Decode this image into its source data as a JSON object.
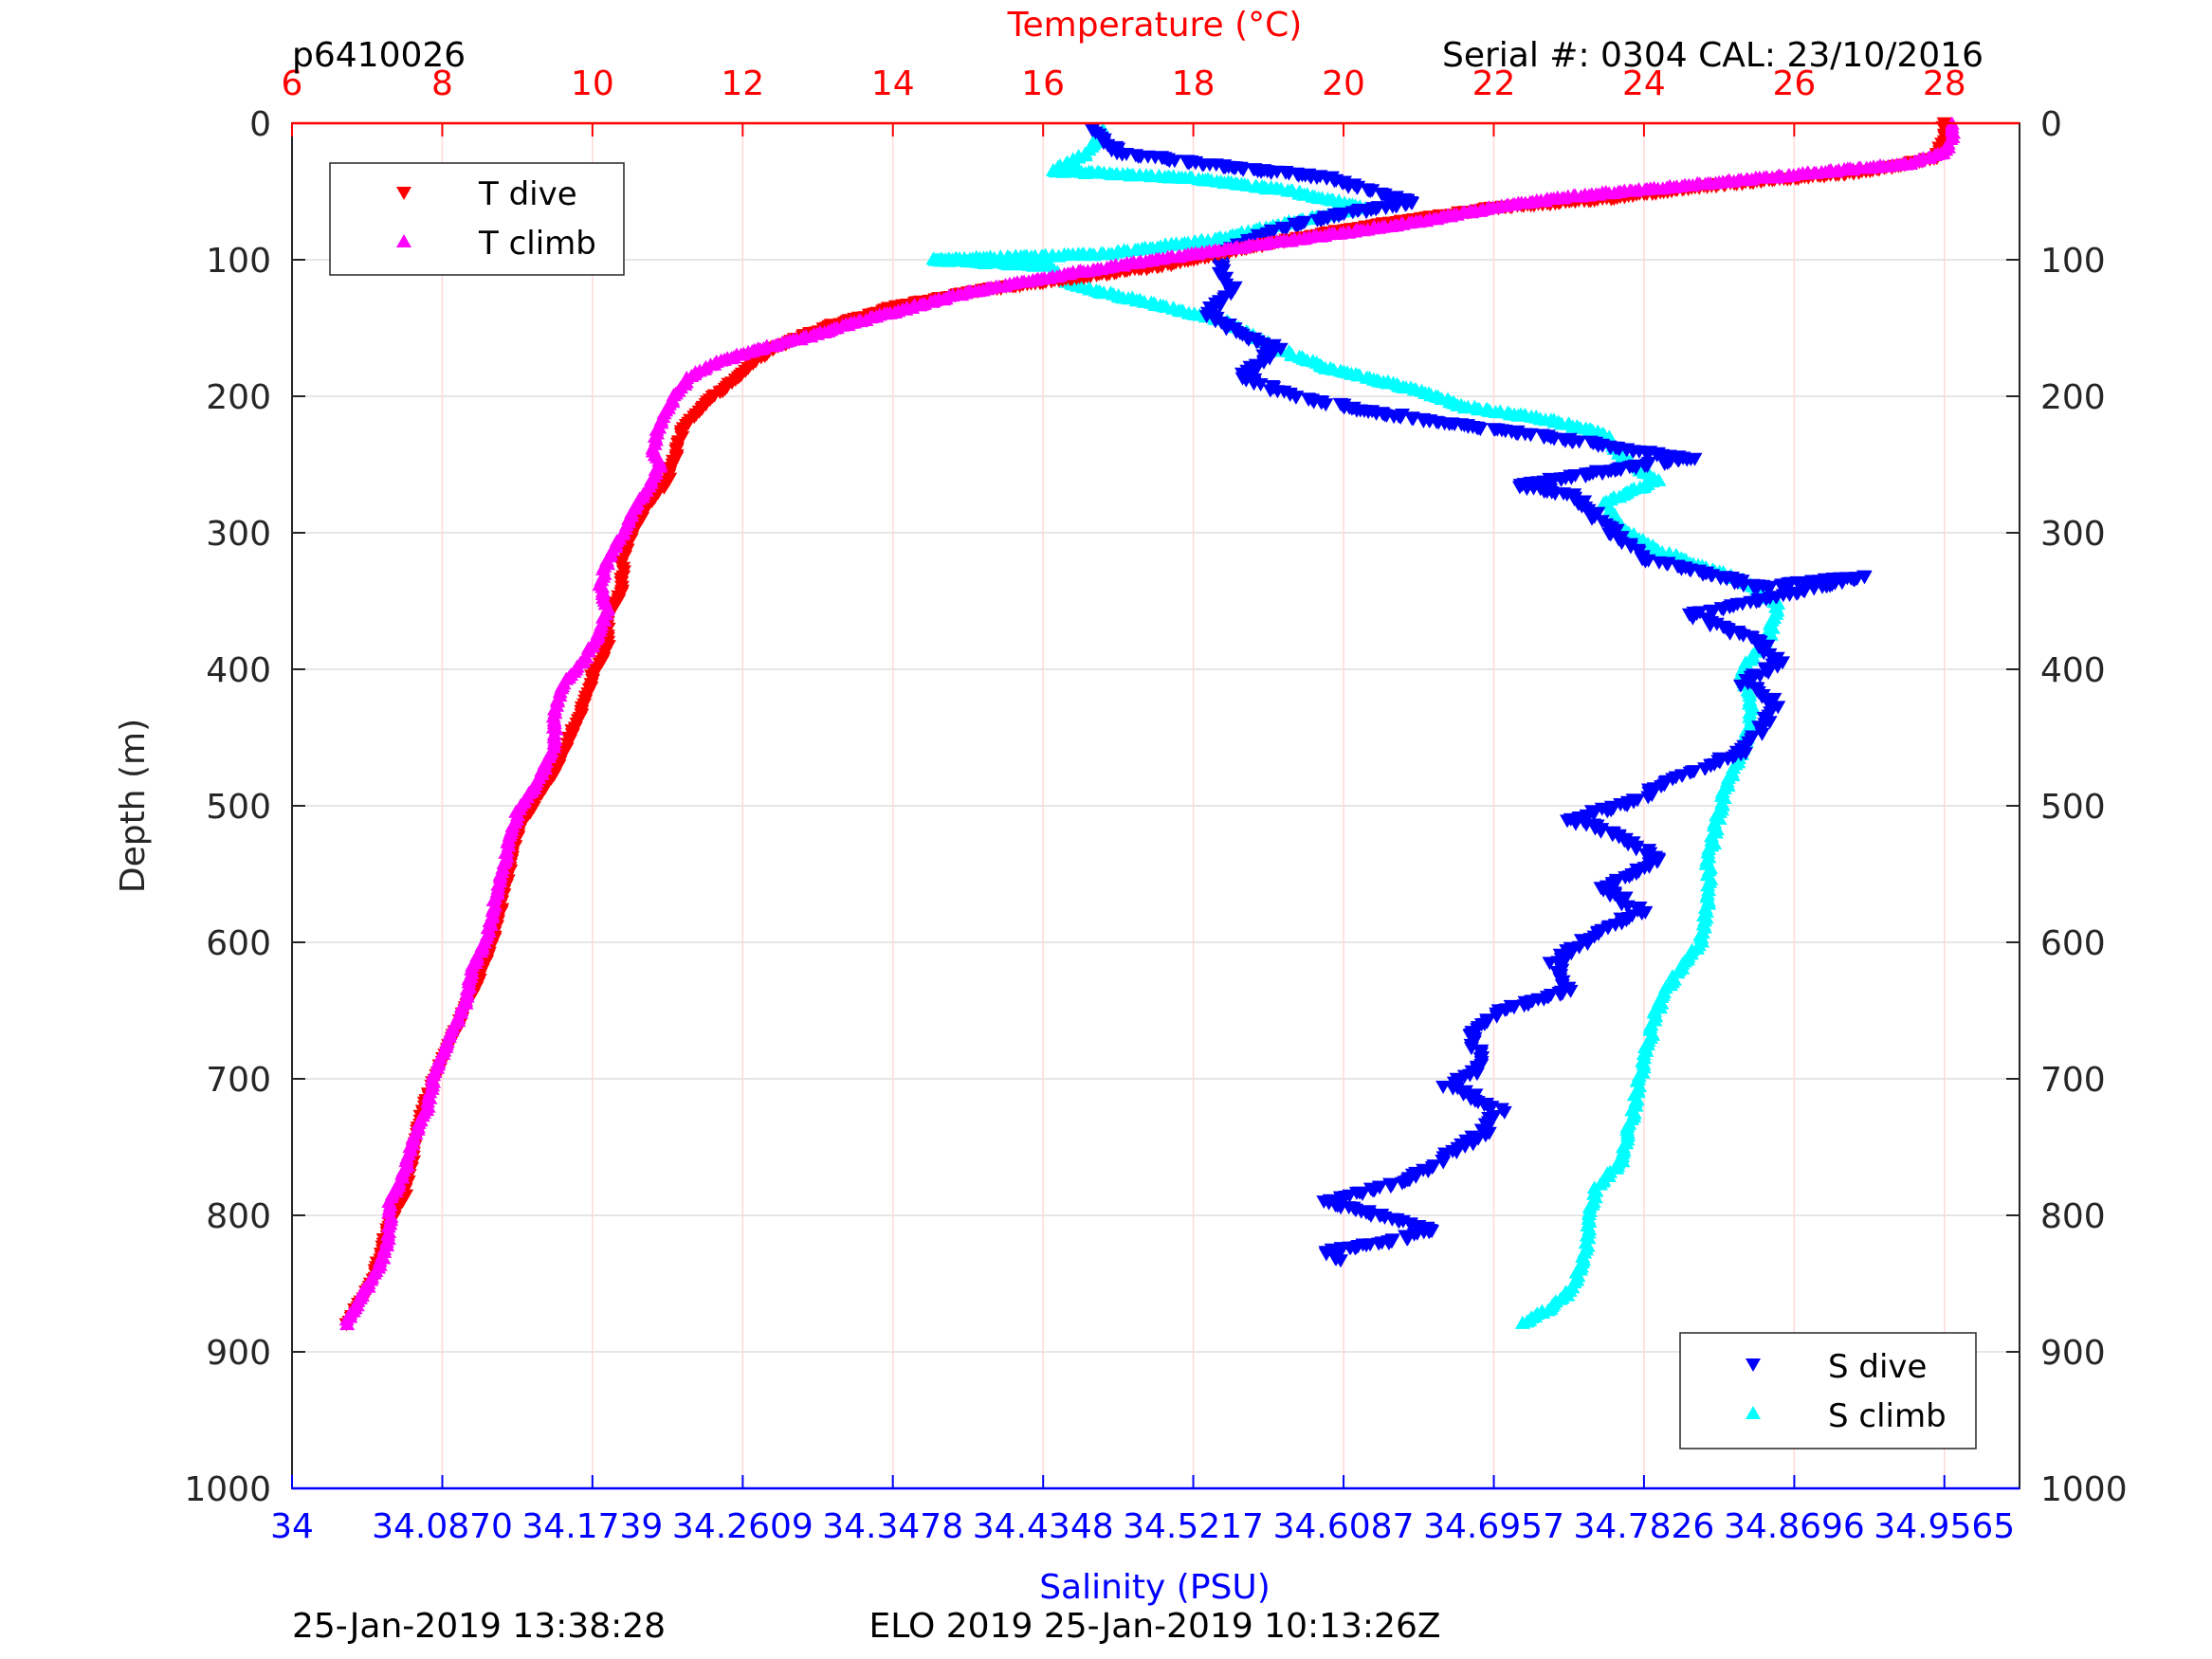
{
  "header": {
    "plot_id": "p6410026",
    "serial": "Serial #: 0304  CAL: 23/10/2016"
  },
  "footer": {
    "left": "25-Jan-2019 13:38:28",
    "center": "ELO 2019 25-Jan-2019 10:13:26Z"
  },
  "chart_data": {
    "type": "scatter",
    "y_axis": {
      "label": "Depth (m)",
      "range": [
        0,
        1000
      ],
      "reversed": true,
      "ticks": [
        "0",
        "100",
        "200",
        "300",
        "400",
        "500",
        "600",
        "700",
        "800",
        "900",
        "1000"
      ]
    },
    "top_axis": {
      "label": "Temperature (°C)",
      "range": [
        6,
        29
      ],
      "ticks": [
        "6",
        "8",
        "10",
        "12",
        "14",
        "16",
        "18",
        "20",
        "22",
        "24",
        "26",
        "28"
      ],
      "color": "#ff0000"
    },
    "bottom_axis": {
      "label": "Salinity (PSU)",
      "range": [
        34,
        35
      ],
      "ticks": [
        "34",
        "34.0870",
        "34.1739",
        "34.2609",
        "34.3478",
        "34.4348",
        "34.5217",
        "34.6087",
        "34.6957",
        "34.7826",
        "34.8696",
        "34.9565"
      ],
      "color": "#0000ff"
    },
    "grid": true,
    "legends": [
      {
        "placement": "top-left",
        "entries": [
          {
            "label": "T dive",
            "color": "#ff0000",
            "marker": "down-triangle"
          },
          {
            "label": "T climb",
            "color": "#ff00ff",
            "marker": "up-triangle"
          }
        ]
      },
      {
        "placement": "bottom-right",
        "entries": [
          {
            "label": "S dive",
            "color": "#0000ff",
            "marker": "down-triangle"
          },
          {
            "label": "S climb",
            "color": "#00ffff",
            "marker": "up-triangle"
          }
        ]
      }
    ],
    "series": [
      {
        "name": "T dive",
        "axis": "temperature",
        "color": "#ff0000",
        "marker": "down-triangle",
        "points": [
          [
            28.0,
            0
          ],
          [
            28.0,
            10
          ],
          [
            27.9,
            25
          ],
          [
            27.0,
            35
          ],
          [
            25.0,
            45
          ],
          [
            23.5,
            55
          ],
          [
            22.0,
            62
          ],
          [
            21.0,
            70
          ],
          [
            20.0,
            78
          ],
          [
            19.0,
            88
          ],
          [
            18.3,
            96
          ],
          [
            17.6,
            104
          ],
          [
            16.6,
            112
          ],
          [
            15.2,
            122
          ],
          [
            14.0,
            135
          ],
          [
            13.2,
            148
          ],
          [
            12.6,
            160
          ],
          [
            12.2,
            172
          ],
          [
            11.9,
            188
          ],
          [
            11.5,
            205
          ],
          [
            11.2,
            225
          ],
          [
            11.1,
            245
          ],
          [
            11.0,
            262
          ],
          [
            10.7,
            282
          ],
          [
            10.5,
            305
          ],
          [
            10.4,
            320
          ],
          [
            10.4,
            342
          ],
          [
            10.2,
            362
          ],
          [
            10.2,
            385
          ],
          [
            10.0,
            405
          ],
          [
            9.9,
            425
          ],
          [
            9.7,
            450
          ],
          [
            9.5,
            475
          ],
          [
            9.2,
            500
          ],
          [
            9.0,
            520
          ],
          [
            8.9,
            545
          ],
          [
            8.8,
            570
          ],
          [
            8.7,
            595
          ],
          [
            8.5,
            625
          ],
          [
            8.3,
            650
          ],
          [
            8.1,
            675
          ],
          [
            7.9,
            700
          ],
          [
            7.7,
            730
          ],
          [
            7.6,
            760
          ],
          [
            7.5,
            785
          ],
          [
            7.3,
            805
          ],
          [
            7.2,
            825
          ],
          [
            7.1,
            845
          ],
          [
            6.9,
            865
          ],
          [
            6.7,
            882
          ]
        ]
      },
      {
        "name": "T climb",
        "axis": "temperature",
        "color": "#ff00ff",
        "marker": "up-triangle",
        "points": [
          [
            28.1,
            0
          ],
          [
            28.1,
            10
          ],
          [
            28.0,
            22
          ],
          [
            27.5,
            30
          ],
          [
            26.0,
            38
          ],
          [
            24.5,
            46
          ],
          [
            23.0,
            54
          ],
          [
            22.0,
            62
          ],
          [
            21.0,
            72
          ],
          [
            19.8,
            82
          ],
          [
            18.5,
            92
          ],
          [
            17.5,
            100
          ],
          [
            16.6,
            108
          ],
          [
            15.8,
            116
          ],
          [
            15.0,
            124
          ],
          [
            14.3,
            134
          ],
          [
            13.5,
            146
          ],
          [
            12.9,
            156
          ],
          [
            12.2,
            166
          ],
          [
            11.7,
            174
          ],
          [
            11.3,
            185
          ],
          [
            11.1,
            200
          ],
          [
            10.9,
            220
          ],
          [
            10.8,
            238
          ],
          [
            10.9,
            250
          ],
          [
            10.8,
            262
          ],
          [
            10.6,
            278
          ],
          [
            10.4,
            300
          ],
          [
            10.2,
            320
          ],
          [
            10.1,
            338
          ],
          [
            10.2,
            355
          ],
          [
            10.1,
            372
          ],
          [
            9.9,
            392
          ],
          [
            9.6,
            412
          ],
          [
            9.5,
            432
          ],
          [
            9.5,
            455
          ],
          [
            9.3,
            480
          ],
          [
            9.0,
            505
          ],
          [
            8.9,
            525
          ],
          [
            8.8,
            548
          ],
          [
            8.7,
            570
          ],
          [
            8.6,
            595
          ],
          [
            8.4,
            620
          ],
          [
            8.3,
            645
          ],
          [
            8.1,
            670
          ],
          [
            7.9,
            695
          ],
          [
            7.8,
            720
          ],
          [
            7.6,
            745
          ],
          [
            7.5,
            768
          ],
          [
            7.3,
            790
          ],
          [
            7.3,
            812
          ],
          [
            7.2,
            832
          ],
          [
            7.0,
            852
          ],
          [
            6.8,
            870
          ],
          [
            6.7,
            882
          ]
        ]
      },
      {
        "name": "S dive",
        "axis": "salinity",
        "color": "#0000ff",
        "marker": "down-triangle",
        "points": [
          [
            34.463,
            5
          ],
          [
            34.48,
            22
          ],
          [
            34.53,
            30
          ],
          [
            34.6,
            40
          ],
          [
            34.62,
            48
          ],
          [
            34.65,
            58
          ],
          [
            34.6,
            68
          ],
          [
            34.57,
            78
          ],
          [
            34.55,
            88
          ],
          [
            34.535,
            98
          ],
          [
            34.54,
            110
          ],
          [
            34.545,
            125
          ],
          [
            34.53,
            140
          ],
          [
            34.55,
            155
          ],
          [
            34.57,
            165
          ],
          [
            34.55,
            185
          ],
          [
            34.58,
            200
          ],
          [
            34.62,
            210
          ],
          [
            34.66,
            218
          ],
          [
            34.7,
            225
          ],
          [
            34.74,
            232
          ],
          [
            34.79,
            242
          ],
          [
            34.81,
            245
          ],
          [
            34.71,
            265
          ],
          [
            34.74,
            272
          ],
          [
            34.75,
            282
          ],
          [
            34.76,
            295
          ],
          [
            34.77,
            305
          ],
          [
            34.78,
            318
          ],
          [
            34.82,
            330
          ],
          [
            34.85,
            340
          ],
          [
            34.88,
            335
          ],
          [
            34.91,
            332
          ],
          [
            34.81,
            360
          ],
          [
            34.83,
            370
          ],
          [
            34.85,
            380
          ],
          [
            34.86,
            395
          ],
          [
            34.84,
            410
          ],
          [
            34.86,
            425
          ],
          [
            34.85,
            442
          ],
          [
            34.84,
            460
          ],
          [
            34.8,
            480
          ],
          [
            34.78,
            495
          ],
          [
            34.74,
            510
          ],
          [
            34.77,
            522
          ],
          [
            34.79,
            540
          ],
          [
            34.76,
            560
          ],
          [
            34.78,
            578
          ],
          [
            34.75,
            598
          ],
          [
            34.73,
            615
          ],
          [
            34.74,
            635
          ],
          [
            34.7,
            650
          ],
          [
            34.68,
            668
          ],
          [
            34.69,
            690
          ],
          [
            34.67,
            705
          ],
          [
            34.7,
            722
          ],
          [
            34.69,
            740
          ],
          [
            34.67,
            755
          ],
          [
            34.65,
            772
          ],
          [
            34.6,
            790
          ],
          [
            34.63,
            800
          ],
          [
            34.66,
            810
          ],
          [
            34.64,
            818
          ],
          [
            34.6,
            826
          ],
          [
            34.61,
            835
          ]
        ]
      },
      {
        "name": "S climb",
        "axis": "salinity",
        "color": "#00ffff",
        "marker": "up-triangle",
        "points": [
          [
            34.469,
            5
          ],
          [
            34.46,
            22
          ],
          [
            34.44,
            35
          ],
          [
            34.52,
            40
          ],
          [
            34.58,
            50
          ],
          [
            34.62,
            62
          ],
          [
            34.58,
            72
          ],
          [
            34.54,
            84
          ],
          [
            34.47,
            96
          ],
          [
            34.37,
            100
          ],
          [
            34.44,
            105
          ],
          [
            34.45,
            118
          ],
          [
            34.49,
            130
          ],
          [
            34.54,
            145
          ],
          [
            34.57,
            165
          ],
          [
            34.6,
            180
          ],
          [
            34.65,
            195
          ],
          [
            34.68,
            208
          ],
          [
            34.73,
            218
          ],
          [
            34.76,
            228
          ],
          [
            34.77,
            245
          ],
          [
            34.79,
            262
          ],
          [
            34.76,
            278
          ],
          [
            34.77,
            298
          ],
          [
            34.79,
            312
          ],
          [
            34.81,
            322
          ],
          [
            34.84,
            335
          ],
          [
            34.86,
            352
          ],
          [
            34.855,
            375
          ],
          [
            34.84,
            400
          ],
          [
            34.845,
            430
          ],
          [
            34.84,
            458
          ],
          [
            34.83,
            485
          ],
          [
            34.825,
            510
          ],
          [
            34.82,
            540
          ],
          [
            34.82,
            570
          ],
          [
            34.815,
            600
          ],
          [
            34.8,
            625
          ],
          [
            34.79,
            650
          ],
          [
            34.785,
            675
          ],
          [
            34.78,
            700
          ],
          [
            34.775,
            730
          ],
          [
            34.77,
            760
          ],
          [
            34.755,
            780
          ],
          [
            34.75,
            800
          ],
          [
            34.75,
            820
          ],
          [
            34.745,
            840
          ],
          [
            34.74,
            855
          ],
          [
            34.73,
            867
          ],
          [
            34.71,
            880
          ]
        ]
      }
    ]
  }
}
